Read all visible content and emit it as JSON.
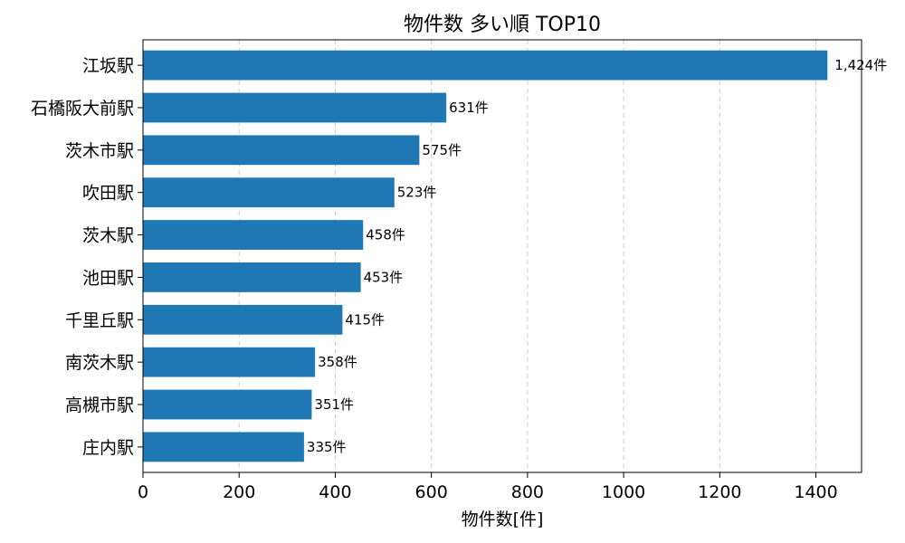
{
  "chart_data": {
    "type": "bar",
    "orientation": "horizontal",
    "title": "物件数 多い順 TOP10",
    "xlabel": "物件数[件]",
    "ylabel": "",
    "categories": [
      "江坂駅",
      "石橋阪大前駅",
      "茨木市駅",
      "吹田駅",
      "茨木駅",
      "池田駅",
      "千里丘駅",
      "南茨木駅",
      "高槻市駅",
      "庄内駅"
    ],
    "values": [
      1424,
      631,
      575,
      523,
      458,
      453,
      415,
      358,
      351,
      335
    ],
    "value_labels": [
      "1,424件",
      "631件",
      "575件",
      "523件",
      "458件",
      "453件",
      "415件",
      "358件",
      "351件",
      "335件"
    ],
    "xlim": [
      0,
      1495
    ],
    "xticks": [
      0,
      200,
      400,
      600,
      800,
      1000,
      1200,
      1400
    ],
    "xtick_labels": [
      "0",
      "200",
      "400",
      "600",
      "800",
      "1000",
      "1200",
      "1400"
    ],
    "grid": "x-dashed",
    "bar_color": "#1f77b4"
  }
}
